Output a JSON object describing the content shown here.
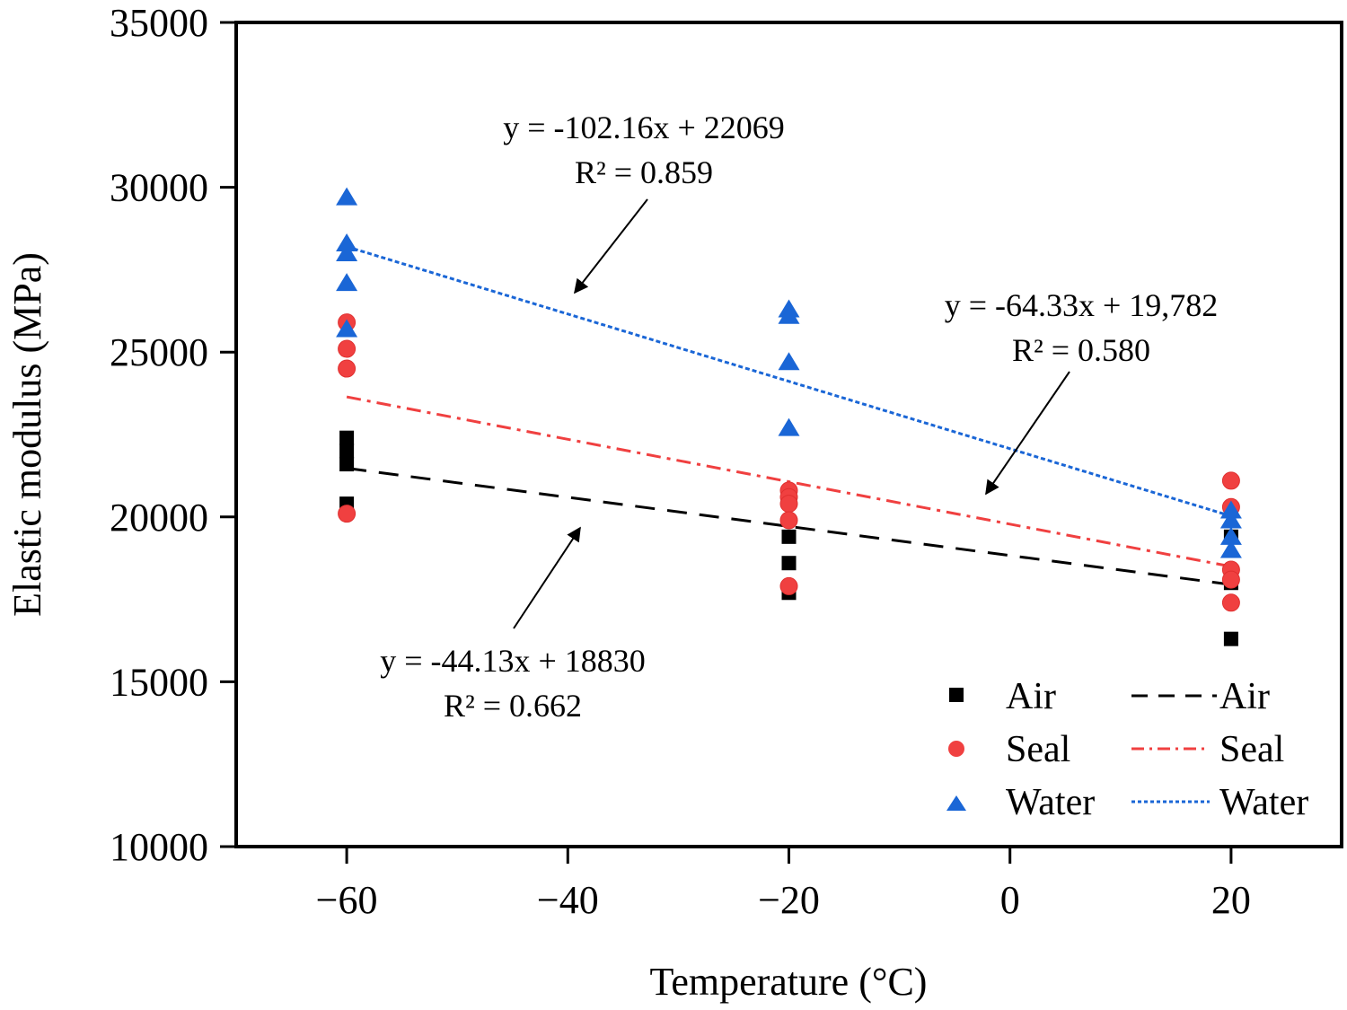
{
  "chart_data": {
    "type": "scatter",
    "title": "",
    "xlabel": "Temperature (°C)",
    "ylabel": "Elastic modulus (MPa)",
    "xlim": [
      -70,
      30
    ],
    "ylim": [
      10000,
      35000
    ],
    "xticks": [
      -60,
      -40,
      -20,
      0,
      20
    ],
    "xtick_labels": [
      "−60",
      "−40",
      "−20",
      "0",
      "20"
    ],
    "yticks": [
      10000,
      15000,
      20000,
      25000,
      30000,
      35000
    ],
    "ytick_labels": [
      "10000",
      "15000",
      "20000",
      "25000",
      "30000",
      "35000"
    ],
    "grid": false,
    "legend_position": "bottom-right",
    "series": [
      {
        "name": "Air",
        "marker": "square",
        "color": "#000000",
        "points": [
          [
            -60,
            22400
          ],
          [
            -60,
            22000
          ],
          [
            -60,
            21600
          ],
          [
            -60,
            20400
          ],
          [
            -20,
            20600
          ],
          [
            -20,
            19400
          ],
          [
            -20,
            18600
          ],
          [
            -20,
            17700
          ],
          [
            20,
            19400
          ],
          [
            20,
            18000
          ],
          [
            20,
            16300
          ]
        ]
      },
      {
        "name": "Seal",
        "marker": "circle",
        "color": "#f04040",
        "points": [
          [
            -60,
            25900
          ],
          [
            -60,
            25100
          ],
          [
            -60,
            24500
          ],
          [
            -60,
            20100
          ],
          [
            -20,
            20800
          ],
          [
            -20,
            20600
          ],
          [
            -20,
            20400
          ],
          [
            -20,
            19900
          ],
          [
            -20,
            17900
          ],
          [
            20,
            21100
          ],
          [
            20,
            20300
          ],
          [
            20,
            18400
          ],
          [
            20,
            18100
          ],
          [
            20,
            17400
          ]
        ]
      },
      {
        "name": "Water",
        "marker": "triangle",
        "color": "#1a66d6",
        "points": [
          [
            -60,
            29700
          ],
          [
            -60,
            28300
          ],
          [
            -60,
            28000
          ],
          [
            -60,
            27100
          ],
          [
            -60,
            25700
          ],
          [
            -20,
            26300
          ],
          [
            -20,
            26100
          ],
          [
            -20,
            24700
          ],
          [
            -20,
            22700
          ],
          [
            20,
            20200
          ],
          [
            20,
            19900
          ],
          [
            20,
            19400
          ],
          [
            20,
            19000
          ]
        ]
      }
    ],
    "fits": [
      {
        "name": "Air",
        "style": "dashed",
        "color": "#000000",
        "slope": -44.13,
        "intercept": 18830,
        "x_range": [
          -60,
          20
        ],
        "equation": "y = -44.13x + 18830",
        "r2": "R² = 0.662",
        "arrow_target": [
          -40,
          20500
        ]
      },
      {
        "name": "Seal",
        "style": "dash-dot",
        "color": "#f04040",
        "slope": -64.33,
        "intercept": 19782,
        "x_range": [
          -60,
          20
        ],
        "equation": "y = -64.33x + 19,782",
        "r2": "R² = 0.580",
        "arrow_target": [
          -2,
          19900
        ]
      },
      {
        "name": "Water",
        "style": "dotted",
        "color": "#1a66d6",
        "slope": -102.16,
        "intercept": 22069,
        "x_range": [
          -60,
          20
        ],
        "equation": "y = -102.16x + 22069",
        "r2": "R² = 0.859",
        "arrow_target": [
          -40,
          26300
        ]
      }
    ],
    "legend": {
      "markers": [
        "Air",
        "Seal",
        "Water"
      ],
      "lines": [
        "Air",
        "Seal",
        "Water"
      ]
    }
  }
}
